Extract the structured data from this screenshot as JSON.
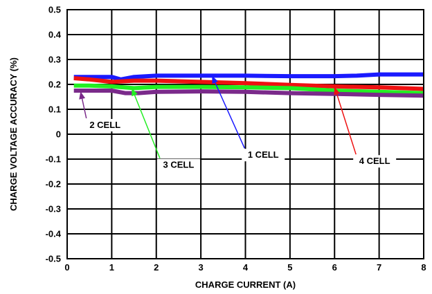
{
  "chart_data": {
    "type": "line",
    "title": "",
    "xlabel": "CHARGE CURRENT (A)",
    "ylabel": "CHARGE VOLTAGE ACCURACY (%)",
    "xlim": [
      0,
      8
    ],
    "ylim": [
      -0.5,
      0.5
    ],
    "grid": true,
    "legend": "none",
    "x_ticks": [
      "0",
      "1",
      "2",
      "3",
      "4",
      "5",
      "6",
      "7",
      "8"
    ],
    "y_ticks": [
      "0.5",
      "0.4",
      "0.3",
      "0.2",
      "0.1",
      "0",
      "-0.1",
      "-0.2",
      "-0.3",
      "-0.4",
      "-0.5"
    ],
    "series": [
      {
        "name": "1 CELL",
        "color": "#1a1aff",
        "x": [
          0.15,
          0.5,
          1.0,
          1.2,
          1.5,
          2.0,
          3.0,
          4.0,
          5.0,
          6.0,
          6.5,
          7.0,
          8.0
        ],
        "y": [
          0.23,
          0.23,
          0.23,
          0.22,
          0.23,
          0.235,
          0.235,
          0.235,
          0.233,
          0.233,
          0.235,
          0.24,
          0.24
        ]
      },
      {
        "name": "4 CELL",
        "color": "#ee1111",
        "x": [
          0.15,
          0.5,
          1.0,
          1.5,
          2.0,
          3.0,
          4.0,
          5.0,
          6.0,
          7.0,
          8.0
        ],
        "y": [
          0.225,
          0.22,
          0.21,
          0.215,
          0.215,
          0.21,
          0.205,
          0.198,
          0.192,
          0.188,
          0.182
        ]
      },
      {
        "name": "3 CELL",
        "color": "#22ee22",
        "x": [
          0.15,
          0.5,
          1.0,
          1.5,
          2.0,
          3.0,
          4.0,
          5.0,
          6.0,
          7.0,
          8.0
        ],
        "y": [
          0.195,
          0.195,
          0.192,
          0.185,
          0.19,
          0.19,
          0.188,
          0.185,
          0.175,
          0.17,
          0.165
        ]
      },
      {
        "name": "2 CELL",
        "color": "#7a2a8a",
        "x": [
          0.15,
          0.5,
          1.0,
          1.3,
          1.6,
          2.0,
          3.0,
          4.0,
          5.0,
          6.0,
          7.0,
          8.0
        ],
        "y": [
          0.175,
          0.175,
          0.175,
          0.165,
          0.165,
          0.17,
          0.172,
          0.17,
          0.165,
          0.162,
          0.158,
          0.155
        ]
      }
    ],
    "annotations": [
      {
        "label": "2 CELL",
        "series": "2 CELL",
        "arrow_to": [
          0.3,
          0.172
        ],
        "text_at": [
          0.85,
          0.025
        ]
      },
      {
        "label": "3 CELL",
        "series": "3 CELL",
        "arrow_to": [
          1.45,
          0.185
        ],
        "text_at": [
          2.5,
          -0.135
        ]
      },
      {
        "label": "1 CELL",
        "series": "1 CELL",
        "arrow_to": [
          3.25,
          0.235
        ],
        "text_at": [
          4.4,
          -0.095
        ]
      },
      {
        "label": "4 CELL",
        "series": "4 CELL",
        "arrow_to": [
          6.0,
          0.19
        ],
        "text_at": [
          6.9,
          -0.12
        ]
      }
    ]
  }
}
